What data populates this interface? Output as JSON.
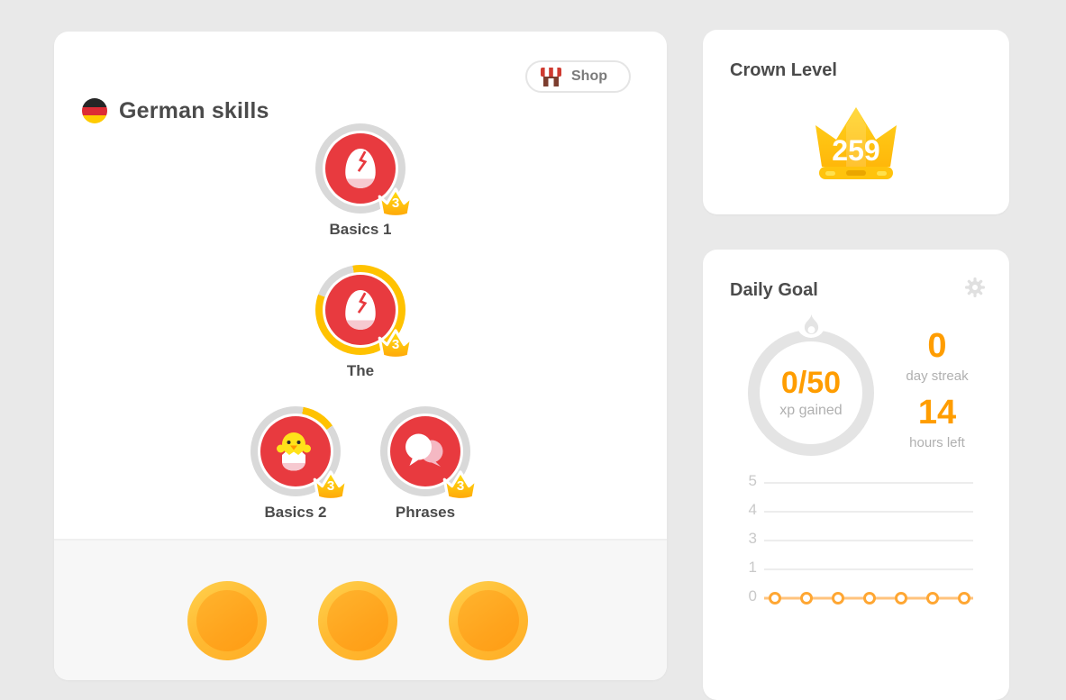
{
  "colors": {
    "page_bg": "#e9e9e9",
    "card_bg": "#ffffff",
    "title_text": "#4b4b4b",
    "muted_text": "#b0b0b0",
    "accent_orange": "#ff9d00",
    "skill_red": "#e83a3f",
    "gold": "#ffc200",
    "ring_gray": "#d9d9d9",
    "chart_line": "#ffc37d",
    "chart_marker_stroke": "#ffa733"
  },
  "skills_card": {
    "flag_icon": "german-flag-icon",
    "title": "German skills",
    "shop_button": {
      "icon": "storefront-icon",
      "label": "Shop"
    },
    "skills": [
      {
        "name": "Basics 1",
        "icon": "cracked-egg-icon",
        "crown_level": "3",
        "ring": {
          "start_deg": 0,
          "sweep_deg": 0
        }
      },
      {
        "name": "The",
        "icon": "cracked-egg-icon",
        "crown_level": "3",
        "ring": {
          "start_deg": -10,
          "sweep_deg": 300
        }
      },
      {
        "name": "Basics 2",
        "icon": "hatched-chick-icon",
        "crown_level": "3",
        "ring": {
          "start_deg": 10,
          "sweep_deg": 45
        }
      },
      {
        "name": "Phrases",
        "icon": "speech-bubbles-icon",
        "crown_level": "3",
        "ring": {
          "start_deg": 0,
          "sweep_deg": 0
        }
      }
    ],
    "checkpoint_icons": [
      "gold-coin-icon",
      "gold-coin-icon",
      "gold-coin-icon"
    ]
  },
  "crown_card": {
    "title": "Crown Level",
    "crown_icon": "crown-icon",
    "level": "259"
  },
  "daily_goal_card": {
    "title": "Daily Goal",
    "settings_icon": "gear-icon",
    "flame_icon": "flame-icon",
    "xp_progress": "0/50",
    "xp_label": "xp gained",
    "streak_value": "0",
    "streak_label": "day streak",
    "hours_value": "14",
    "hours_label": "hours left"
  },
  "chart_data": {
    "type": "line",
    "title": "",
    "xlabel": "",
    "ylabel": "",
    "y_ticks": [
      "5",
      "4",
      "3",
      "1",
      "0"
    ],
    "ylim": [
      0,
      5
    ],
    "x": [
      1,
      2,
      3,
      4,
      5,
      6,
      7
    ],
    "values": [
      0,
      0,
      0,
      0,
      0,
      0,
      0
    ],
    "grid": true,
    "legend": false
  }
}
